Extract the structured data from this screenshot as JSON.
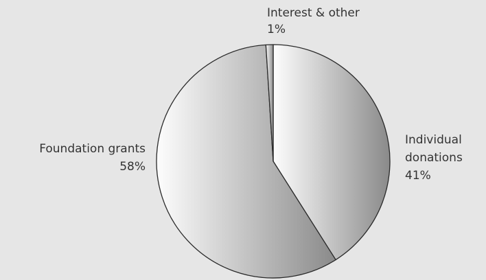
{
  "chart_data": {
    "type": "pie",
    "slices": [
      {
        "label": "Individual donations",
        "label_lines": [
          "Individual",
          "donations"
        ],
        "value": 41,
        "pct_text": "41%"
      },
      {
        "label": "Foundation grants",
        "label_lines": [
          "Foundation grants"
        ],
        "value": 58,
        "pct_text": "58%"
      },
      {
        "label": "Interest & other",
        "label_lines": [
          "Interest & other"
        ],
        "value": 1,
        "pct_text": "1%"
      }
    ],
    "colors": {
      "background": "#e6e6e6",
      "slice_light": "#fdfdfd",
      "slice_dark": "#8a8a8a",
      "border": "#2a2a2a",
      "label": "#333333"
    }
  }
}
